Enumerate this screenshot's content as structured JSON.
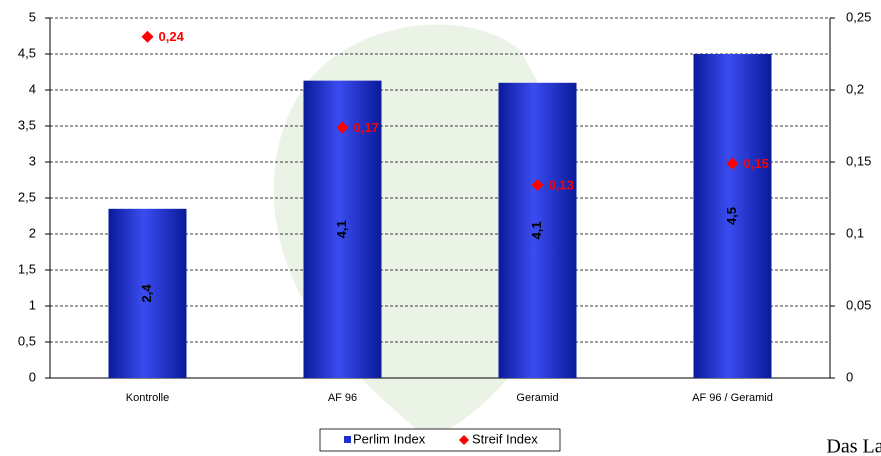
{
  "chart_data": {
    "type": "bar_line_dual",
    "categories": [
      "Kontrolle",
      "AF 96",
      "Geramid",
      "AF 96 / Geramid"
    ],
    "series": [
      {
        "name": "Perlim Index",
        "color": "#1f2fd0",
        "values": [
          2.35,
          4.13,
          4.1,
          4.5
        ],
        "value_labels": [
          "2,4",
          "4,1",
          "4,1",
          "4,5"
        ]
      },
      {
        "name": "Streif Index",
        "color": "#ff0000",
        "axis": "y2",
        "values": [
          0.237,
          0.174,
          0.134,
          0.149
        ],
        "value_labels": [
          "0,24",
          "0,17",
          "0,13",
          "0,15"
        ]
      }
    ],
    "ylim": [
      0,
      5
    ],
    "yticks": [
      0,
      {
        "value": 0.5,
        "label": "0,5"
      },
      1,
      {
        "value": 1.5,
        "label": "1,5"
      },
      2,
      {
        "value": 2.5,
        "label": "2,5"
      },
      3,
      {
        "value": 3.5,
        "label": "3,5"
      },
      4,
      {
        "value": 4.5,
        "label": "4,5"
      },
      5
    ],
    "y2lim": [
      0,
      0.25
    ],
    "y2ticks": [
      0,
      {
        "value": 0.05,
        "label": "0,05"
      },
      {
        "value": 0.1,
        "label": "0,1"
      },
      {
        "value": 0.15,
        "label": "0,15"
      },
      {
        "value": 0.2,
        "label": "0,2"
      },
      {
        "value": 0.25,
        "label": "0,25"
      }
    ],
    "grid": true,
    "legend": "bottom"
  },
  "logo": "Das Lau"
}
